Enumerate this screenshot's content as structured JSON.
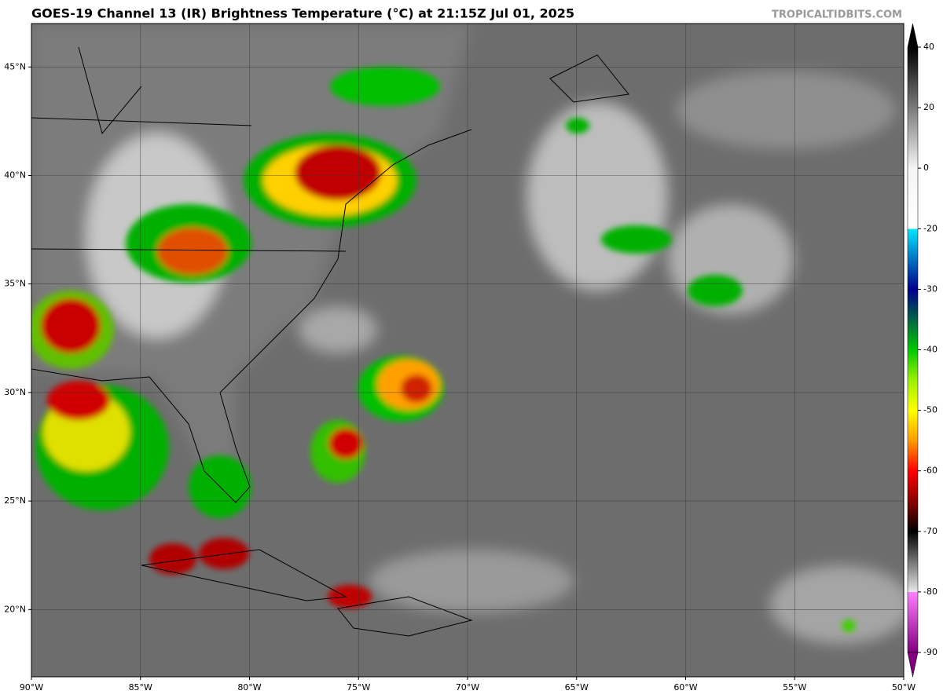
{
  "header": {
    "title": "GOES-19 Channel 13 (IR) Brightness Temperature (°C) at 21:15Z Jul 01, 2025",
    "credit": "TROPICALTIDBITS.COM"
  },
  "map": {
    "xlim": [
      -90,
      -50
    ],
    "ylim": [
      16.9,
      47.0
    ],
    "xticks": [
      {
        "value": -90,
        "label": "90°W"
      },
      {
        "value": -85,
        "label": "85°W"
      },
      {
        "value": -80,
        "label": "80°W"
      },
      {
        "value": -75,
        "label": "75°W"
      },
      {
        "value": -70,
        "label": "70°W"
      },
      {
        "value": -65,
        "label": "65°W"
      },
      {
        "value": -60,
        "label": "60°W"
      },
      {
        "value": -55,
        "label": "55°W"
      },
      {
        "value": -50,
        "label": "50°W"
      }
    ],
    "yticks": [
      {
        "value": 20,
        "label": "20°N"
      },
      {
        "value": 25,
        "label": "25°N"
      },
      {
        "value": 30,
        "label": "30°N"
      },
      {
        "value": 35,
        "label": "35°N"
      },
      {
        "value": 40,
        "label": "40°N"
      },
      {
        "value": 45,
        "label": "45°N"
      }
    ]
  },
  "colorbar": {
    "ticks": [
      40,
      20,
      0,
      -20,
      -30,
      -40,
      -50,
      -60,
      -70,
      -80,
      -90
    ],
    "colormap": [
      {
        "value": 40,
        "color": "#000000"
      },
      {
        "value": 0,
        "color": "#f4f4f4"
      },
      {
        "value": -20,
        "color": "#ffffff"
      },
      {
        "value": -20,
        "color": "#00e8ff"
      },
      {
        "value": -30,
        "color": "#00008c"
      },
      {
        "value": -40,
        "color": "#00c800"
      },
      {
        "value": -45,
        "color": "#9cf000"
      },
      {
        "value": -50,
        "color": "#ffff00"
      },
      {
        "value": -55,
        "color": "#ff9c00"
      },
      {
        "value": -60,
        "color": "#ff0000"
      },
      {
        "value": -65,
        "color": "#8c0000"
      },
      {
        "value": -70,
        "color": "#000000"
      },
      {
        "value": -80,
        "color": "#e8e8e8"
      },
      {
        "value": -80,
        "color": "#ff80ff"
      },
      {
        "value": -90,
        "color": "#80007f"
      }
    ]
  }
}
